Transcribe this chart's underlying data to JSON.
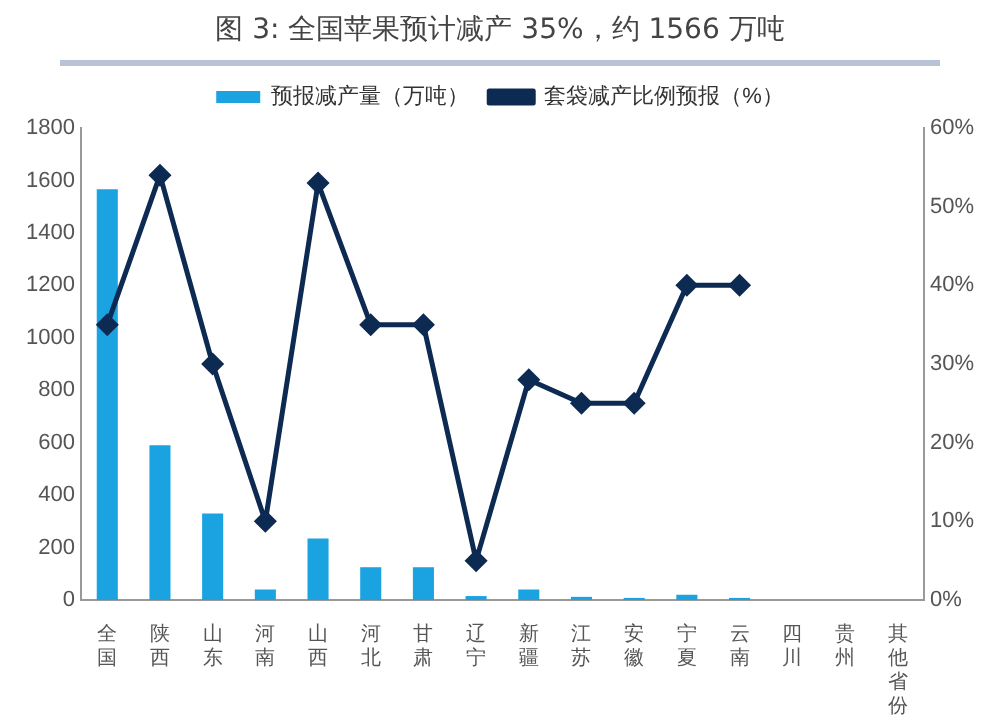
{
  "chart_data": {
    "type": "bar",
    "title": "图 3:  全国苹果预计减产 35%，约 1566 万吨",
    "categories": [
      "全国",
      "陕西",
      "山东",
      "河南",
      "山西",
      "河北",
      "甘肃",
      "辽宁",
      "新疆",
      "江苏",
      "安徽",
      "宁夏",
      "云南",
      "四川",
      "贵州",
      "其他省份"
    ],
    "series": [
      {
        "name": "预报减产量（万吨）",
        "color": "#1aa3e0",
        "values": [
          1566,
          590,
          330,
          40,
          235,
          125,
          125,
          15,
          40,
          12,
          8,
          20,
          8,
          null,
          null,
          null
        ]
      },
      {
        "name": "套袋减产比例预报（%）",
        "type": "line",
        "axis": "y2",
        "color": "#0d2a52",
        "marker": "diamond",
        "values": [
          35,
          54,
          30,
          10,
          53,
          35,
          35,
          5,
          28,
          25,
          25,
          40,
          40,
          null,
          null,
          null
        ]
      }
    ],
    "ylim": [
      0,
      1800
    ],
    "yticks": [
      0,
      200,
      400,
      600,
      800,
      1000,
      1200,
      1400,
      1600,
      1800
    ],
    "y2lim": [
      0,
      60
    ],
    "y2ticks": [
      {
        "value": 0,
        "label": "0%"
      },
      {
        "value": 10,
        "label": "10%"
      },
      {
        "value": 20,
        "label": "20%"
      },
      {
        "value": 30,
        "label": "30%"
      },
      {
        "value": 40,
        "label": "40%"
      },
      {
        "value": 50,
        "label": "50%"
      },
      {
        "value": 60,
        "label": "60%"
      }
    ],
    "legend": "top",
    "grid": false
  }
}
